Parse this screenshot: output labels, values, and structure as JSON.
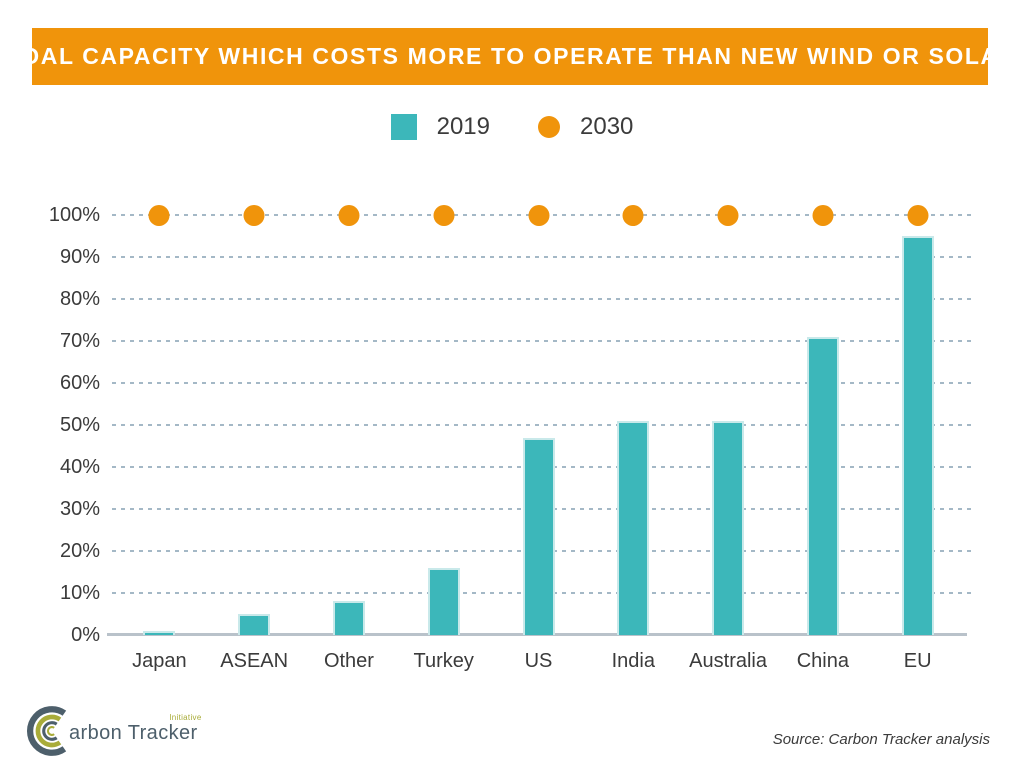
{
  "header": {
    "title": "COAL CAPACITY WHICH COSTS MORE TO OPERATE THAN NEW WIND OR SOLAR"
  },
  "legend": {
    "items": [
      {
        "label": "2019",
        "shape": "square",
        "color": "#3CB7BA"
      },
      {
        "label": "2030",
        "shape": "circle",
        "color": "#F0940B"
      }
    ]
  },
  "chart_data": {
    "type": "bar",
    "title": "COAL CAPACITY WHICH COSTS MORE TO OPERATE THAN NEW WIND OR SOLAR",
    "categories": [
      "Japan",
      "ASEAN",
      "Other",
      "Turkey",
      "US",
      "India",
      "Australia",
      "China",
      "EU"
    ],
    "series": [
      {
        "name": "2019",
        "type": "bar",
        "color": "#3CB7BA",
        "values": [
          1,
          5,
          8,
          16,
          47,
          51,
          51,
          71,
          95
        ]
      },
      {
        "name": "2030",
        "type": "point",
        "color": "#F0940B",
        "values": [
          100,
          100,
          100,
          100,
          100,
          100,
          100,
          100,
          100
        ]
      }
    ],
    "ylim": [
      0,
      100
    ],
    "ytick_step": 10,
    "yticks": [
      "0%",
      "10%",
      "20%",
      "30%",
      "40%",
      "50%",
      "60%",
      "70%",
      "80%",
      "90%",
      "100%"
    ],
    "xlabel": "",
    "ylabel": "",
    "grid": "horizontal-dashed",
    "legend_position": "top-center"
  },
  "footer": {
    "logo": {
      "name": "Carbon Tracker",
      "wordmark_after_initial": "arbon Tracker",
      "badge": "Initiative"
    },
    "source": "Source: Carbon Tracker analysis"
  },
  "colors": {
    "accent_orange": "#F0940B",
    "accent_teal": "#3CB7BA",
    "gridline": "#A4B8C6",
    "axis_line": "#B9C2CA",
    "label_text": "#3B3B3B",
    "logo_slate": "#4D5F6B",
    "logo_olive": "#A9AC39"
  }
}
